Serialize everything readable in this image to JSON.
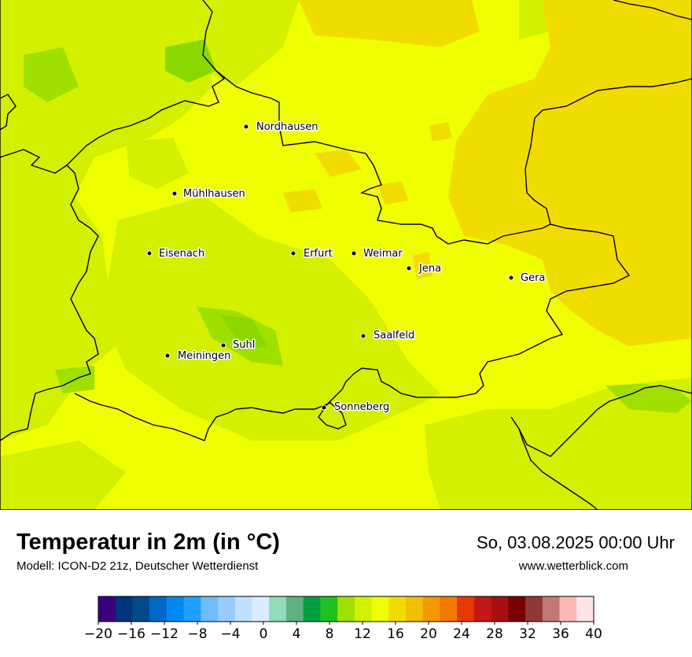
{
  "map": {
    "cities": [
      {
        "name": "Nordhausen"
      },
      {
        "name": "Mühlhausen"
      },
      {
        "name": "Eisenach"
      },
      {
        "name": "Erfurt"
      },
      {
        "name": "Weimar"
      },
      {
        "name": "Jena"
      },
      {
        "name": "Gera"
      },
      {
        "name": "Saalfeld"
      },
      {
        "name": "Suhl"
      },
      {
        "name": "Meiningen"
      },
      {
        "name": "Sonneberg"
      }
    ],
    "colors": {
      "base": "#f0ff00",
      "warm": "#f1dc00",
      "cool": "#d2f000",
      "cooler": "#a0e000",
      "coolest": "#8ad800",
      "border": "#000000"
    }
  },
  "footer": {
    "title": "Temperatur in 2m (in °C)",
    "model": "Modell: ICON-D2 21z, Deutscher Wetterdienst",
    "date": "So, 03.08.2025 00:00 Uhr",
    "website": "www.wetterblick.com"
  },
  "legend": {
    "ticks": [
      "−20",
      "−16",
      "−12",
      "−8",
      "−4",
      "0",
      "4",
      "8",
      "12",
      "16",
      "20",
      "24",
      "28",
      "32",
      "36",
      "40"
    ],
    "colors": [
      "#3b0080",
      "#00347e",
      "#004a8c",
      "#0068c6",
      "#0088f2",
      "#20a0ff",
      "#70bcff",
      "#98ccff",
      "#bfe0ff",
      "#dcecff",
      "#90dcb8",
      "#60b080",
      "#00a040",
      "#20c020",
      "#a0e000",
      "#d2f000",
      "#f0ff00",
      "#f1dc00",
      "#f1c000",
      "#f29a00",
      "#f27800",
      "#e83800",
      "#c21818",
      "#a81010",
      "#780000",
      "#903838",
      "#c07878",
      "#ffb8b8",
      "#ffe6e6"
    ]
  }
}
